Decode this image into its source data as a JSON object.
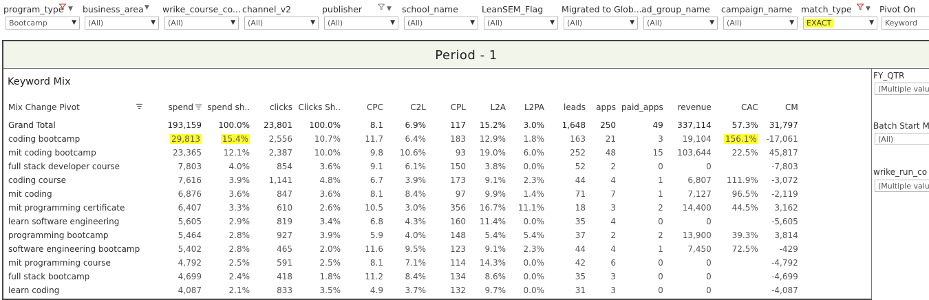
{
  "filters": [
    {
      "label": "program_type",
      "value": "Bootcamp",
      "funnel": "red",
      "value_highlight": false
    },
    {
      "label": "business_area",
      "value": "(All)",
      "funnel": "none",
      "value_highlight": false
    },
    {
      "label": "wrike_course_co...",
      "value": "(All)",
      "funnel": "none",
      "value_highlight": false
    },
    {
      "label": "channel_v2",
      "value": "(All)",
      "funnel": "none",
      "value_highlight": false
    },
    {
      "label": "publisher",
      "value": "(All)",
      "funnel": "grey",
      "value_highlight": false
    },
    {
      "label": "school_name",
      "value": "(All)",
      "funnel": "none",
      "value_highlight": false
    },
    {
      "label": "LeanSEM_Flag",
      "value": "(All)",
      "funnel": "none",
      "value_highlight": false
    },
    {
      "label": "Migrated to Glob...",
      "value": "(All)",
      "funnel": "none",
      "value_highlight": false
    },
    {
      "label": "ad_group_name",
      "value": "(All)",
      "funnel": "none",
      "value_highlight": false
    },
    {
      "label": "campaign_name",
      "value": "(All)",
      "funnel": "none",
      "value_highlight": false
    },
    {
      "label": "match_type",
      "value": "EXACT",
      "funnel": "red",
      "value_highlight": true
    },
    {
      "label": "Pivot On",
      "value": "Keyword",
      "funnel": "none",
      "value_highlight": false
    }
  ],
  "period": {
    "title": "Period - 1"
  },
  "panel": {
    "title": "Keyword Mix"
  },
  "table": {
    "columns": [
      "Mix Change Pivot",
      "spend",
      "spend sh..",
      "clicks",
      "Clicks Sh..",
      "CPC",
      "C2L",
      "CPL",
      "L2A",
      "L2PA",
      "leads",
      "apps",
      "paid_apps",
      "revenue",
      "CAC",
      "CM"
    ],
    "total": {
      "label": "Grand Total",
      "cells": [
        "193,159",
        "100.0%",
        "23,801",
        "100.0%",
        "8.1",
        "6.9%",
        "117",
        "15.2%",
        "3.0%",
        "1,648",
        "250",
        "49",
        "337,114",
        "57.3%",
        "31,797"
      ]
    },
    "rows": [
      {
        "label": "coding bootcamp",
        "cells": [
          "29,813",
          "15.4%",
          "2,556",
          "10.7%",
          "11.7",
          "6.4%",
          "183",
          "12.9%",
          "1.8%",
          "163",
          "21",
          "3",
          "19,104",
          "156.1%",
          "-17,061"
        ]
      },
      {
        "label": "mit coding bootcamp",
        "cells": [
          "23,365",
          "12.1%",
          "2,387",
          "10.0%",
          "9.8",
          "10.6%",
          "93",
          "19.0%",
          "6.0%",
          "252",
          "48",
          "15",
          "103,644",
          "22.5%",
          "45,817"
        ]
      },
      {
        "label": "full stack developer course",
        "cells": [
          "7,803",
          "4.0%",
          "854",
          "3.6%",
          "9.1",
          "6.1%",
          "150",
          "3.8%",
          "0.0%",
          "52",
          "2",
          "0",
          "0",
          "",
          "-7,803"
        ]
      },
      {
        "label": "coding course",
        "cells": [
          "7,616",
          "3.9%",
          "1,141",
          "4.8%",
          "6.7",
          "3.9%",
          "173",
          "9.1%",
          "2.3%",
          "44",
          "4",
          "1",
          "6,807",
          "111.9%",
          "-3,072"
        ]
      },
      {
        "label": "mit coding",
        "cells": [
          "6,876",
          "3.6%",
          "847",
          "3.6%",
          "8.1",
          "8.4%",
          "97",
          "9.9%",
          "1.4%",
          "71",
          "7",
          "1",
          "7,127",
          "96.5%",
          "-2,119"
        ]
      },
      {
        "label": "mit programming certificate",
        "cells": [
          "6,407",
          "3.3%",
          "610",
          "2.6%",
          "10.5",
          "3.0%",
          "356",
          "16.7%",
          "11.1%",
          "18",
          "3",
          "2",
          "14,400",
          "44.5%",
          "3,162"
        ]
      },
      {
        "label": "learn software engineering",
        "cells": [
          "5,605",
          "2.9%",
          "819",
          "3.4%",
          "6.8",
          "4.3%",
          "160",
          "11.4%",
          "0.0%",
          "35",
          "4",
          "0",
          "0",
          "",
          "-5,605"
        ]
      },
      {
        "label": "programming bootcamp",
        "cells": [
          "5,464",
          "2.8%",
          "927",
          "3.9%",
          "5.9",
          "4.0%",
          "148",
          "5.4%",
          "5.4%",
          "37",
          "2",
          "2",
          "13,900",
          "39.3%",
          "3,814"
        ]
      },
      {
        "label": "software engineering bootcamp",
        "cells": [
          "5,402",
          "2.8%",
          "465",
          "2.0%",
          "11.6",
          "9.5%",
          "123",
          "9.1%",
          "2.3%",
          "44",
          "4",
          "1",
          "7,450",
          "72.5%",
          "-429"
        ]
      },
      {
        "label": "mit programming course",
        "cells": [
          "4,792",
          "2.5%",
          "591",
          "2.5%",
          "8.1",
          "7.1%",
          "114",
          "14.3%",
          "0.0%",
          "42",
          "6",
          "0",
          "0",
          "",
          "-4,792"
        ]
      },
      {
        "label": "full stack bootcamp",
        "cells": [
          "4,699",
          "2.4%",
          "418",
          "1.8%",
          "11.2",
          "8.4%",
          "134",
          "8.6%",
          "0.0%",
          "35",
          "3",
          "0",
          "0",
          "",
          "-4,699"
        ]
      },
      {
        "label": "learn coding",
        "cells": [
          "4,087",
          "2.1%",
          "833",
          "3.5%",
          "4.9",
          "3.7%",
          "132",
          "9.7%",
          "0.0%",
          "31",
          "3",
          "0",
          "0",
          "",
          "-4,087"
        ]
      }
    ],
    "highlighted_cells": [
      {
        "row": 0,
        "col": 0
      },
      {
        "row": 0,
        "col": 1
      },
      {
        "row": 0,
        "col": 13
      }
    ]
  },
  "side_filters": [
    {
      "label": "FY_QTR",
      "value": "(Multiple values)"
    },
    {
      "label": "Batch Start M",
      "value": "(All)"
    },
    {
      "label": "wrike_run_co",
      "value": "(Multiple values)"
    }
  ],
  "colors": {
    "highlight": "#ffff2e",
    "period_band": "#f1f5ea",
    "funnel_active": "#c0392b"
  }
}
